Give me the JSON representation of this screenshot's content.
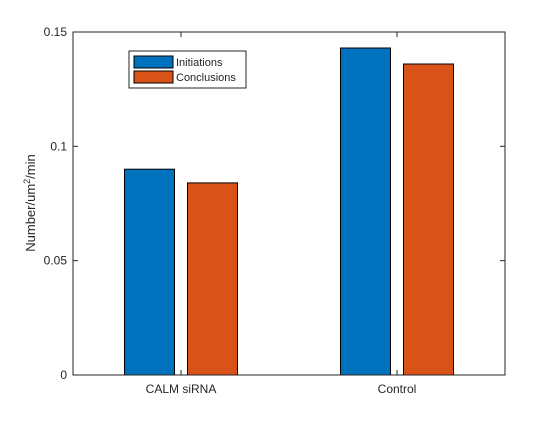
{
  "chart_data": {
    "type": "bar",
    "title": "",
    "xlabel": "",
    "ylabel": "Number/um²/min",
    "ylabel_parts": {
      "before": "Number/um",
      "sup": "2",
      "after": "/min"
    },
    "categories": [
      "CALM siRNA",
      "Control"
    ],
    "series": [
      {
        "name": "Initiations",
        "color": "#0072BD",
        "values": [
          0.09,
          0.143
        ]
      },
      {
        "name": "Conclusions",
        "color": "#D95319",
        "values": [
          0.084,
          0.136
        ]
      }
    ],
    "ylim": [
      0,
      0.15
    ],
    "yticks": [
      0,
      0.05,
      0.1,
      0.15
    ],
    "ytick_labels": [
      "0",
      "0.05",
      "0.1",
      "0.15"
    ],
    "grid": false,
    "legend_placement": "top-left"
  }
}
